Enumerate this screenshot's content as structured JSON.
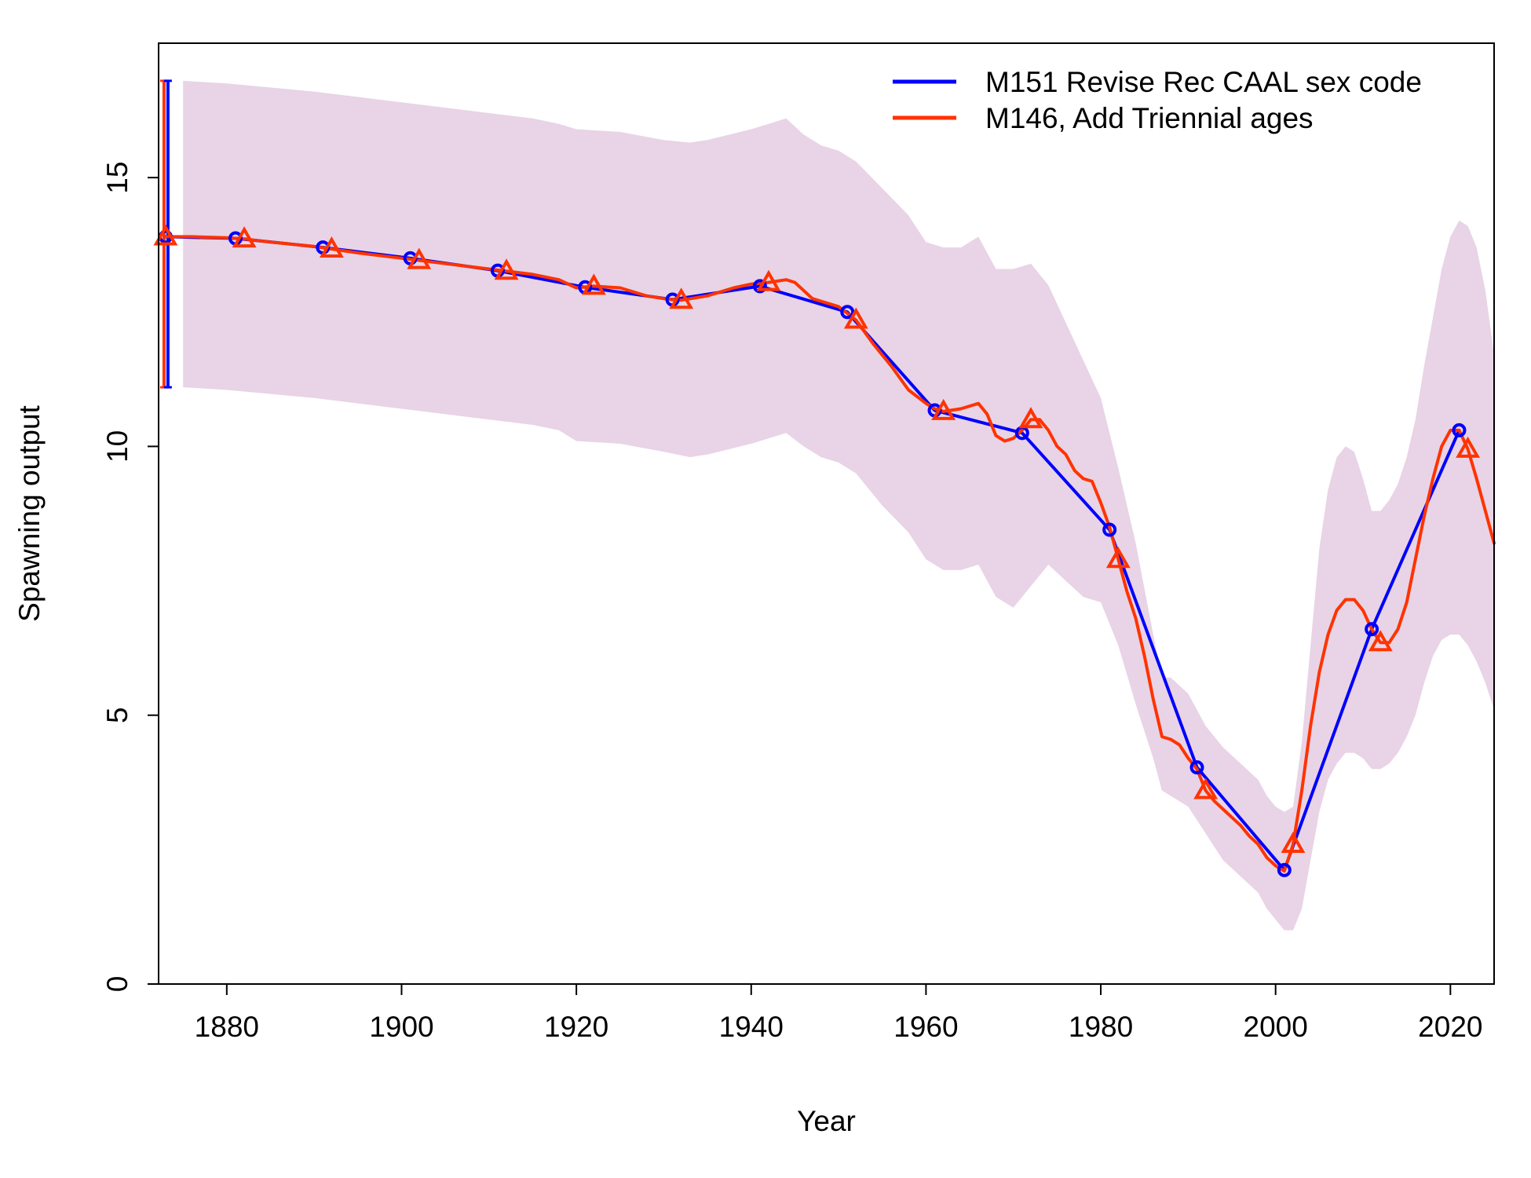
{
  "chart_data": {
    "type": "line",
    "title": "",
    "xlabel": "Year",
    "ylabel": "Spawning output",
    "xlim": [
      1872.2,
      2025
    ],
    "ylim": [
      0,
      17.5
    ],
    "x_ticks": [
      1880,
      1900,
      1920,
      1940,
      1960,
      1980,
      2000,
      2020
    ],
    "y_ticks": [
      0,
      5,
      10,
      15
    ],
    "legend_position": "top-right",
    "grid": false,
    "initial_year_interval": {
      "x": 1873,
      "lower": 11.1,
      "upper": 16.8
    },
    "band": {
      "color": "#e8d4e6",
      "x": [
        1875,
        1880,
        1890,
        1900,
        1910,
        1915,
        1918,
        1920,
        1925,
        1930,
        1933,
        1935,
        1940,
        1942,
        1944,
        1946,
        1948,
        1950,
        1952,
        1955,
        1958,
        1960,
        1962,
        1964,
        1966,
        1968,
        1970,
        1972,
        1974,
        1976,
        1978,
        1980,
        1982,
        1984,
        1986,
        1987,
        1988,
        1990,
        1992,
        1994,
        1996,
        1998,
        1999,
        2000,
        2001,
        2002,
        2003,
        2004,
        2005,
        2006,
        2007,
        2008,
        2009,
        2010,
        2011,
        2012,
        2013,
        2014,
        2015,
        2016,
        2017,
        2018,
        2019,
        2020,
        2021,
        2022,
        2023,
        2024,
        2025
      ],
      "upper": [
        16.8,
        16.75,
        16.6,
        16.4,
        16.2,
        16.1,
        16.0,
        15.9,
        15.85,
        15.7,
        15.65,
        15.7,
        15.9,
        16.0,
        16.1,
        15.8,
        15.6,
        15.5,
        15.3,
        14.8,
        14.3,
        13.8,
        13.7,
        13.7,
        13.9,
        13.3,
        13.3,
        13.4,
        13.0,
        12.3,
        11.6,
        10.9,
        9.6,
        8.2,
        6.5,
        5.7,
        5.7,
        5.4,
        4.8,
        4.4,
        4.1,
        3.8,
        3.5,
        3.3,
        3.2,
        3.3,
        4.5,
        6.3,
        8.1,
        9.2,
        9.8,
        10.0,
        9.9,
        9.4,
        8.8,
        8.8,
        9.0,
        9.3,
        9.8,
        10.5,
        11.5,
        12.4,
        13.3,
        13.9,
        14.2,
        14.1,
        13.7,
        12.9,
        11.7
      ],
      "lower": [
        11.1,
        11.05,
        10.9,
        10.7,
        10.5,
        10.4,
        10.3,
        10.1,
        10.05,
        9.9,
        9.8,
        9.85,
        10.05,
        10.15,
        10.25,
        10.0,
        9.8,
        9.7,
        9.5,
        8.9,
        8.4,
        7.9,
        7.7,
        7.7,
        7.8,
        7.2,
        7.0,
        7.4,
        7.8,
        7.5,
        7.2,
        7.1,
        6.3,
        5.2,
        4.2,
        3.6,
        3.5,
        3.3,
        2.8,
        2.3,
        2.0,
        1.7,
        1.4,
        1.2,
        1.0,
        1.0,
        1.4,
        2.3,
        3.2,
        3.8,
        4.1,
        4.3,
        4.3,
        4.2,
        4.0,
        4.0,
        4.1,
        4.3,
        4.6,
        5.0,
        5.6,
        6.1,
        6.4,
        6.5,
        6.5,
        6.3,
        6.0,
        5.6,
        5.1
      ]
    },
    "series": [
      {
        "name": "M151 Revise Rec CAAL sex code",
        "color": "#0000ff",
        "marker": "circle",
        "x": [
          1873,
          1881,
          1891,
          1901,
          1911,
          1921,
          1931,
          1941,
          1951,
          1961,
          1971,
          1981,
          1991,
          2001,
          2011,
          2021
        ],
        "values": [
          13.9,
          13.87,
          13.7,
          13.5,
          13.27,
          12.96,
          12.73,
          12.98,
          12.5,
          10.67,
          10.25,
          8.45,
          4.03,
          2.12,
          6.6,
          10.3
        ]
      },
      {
        "name": "M146, Add Triennial ages",
        "color": "#ff3300",
        "marker": "triangle",
        "x": [
          1873,
          1876,
          1880,
          1882,
          1885,
          1890,
          1895,
          1900,
          1905,
          1910,
          1915,
          1918,
          1920,
          1922,
          1925,
          1928,
          1930,
          1932,
          1935,
          1938,
          1940,
          1942,
          1944,
          1945,
          1947,
          1950,
          1952,
          1954,
          1956,
          1958,
          1960,
          1961,
          1962,
          1964,
          1966,
          1967,
          1968,
          1969,
          1970,
          1971,
          1972,
          1973,
          1974,
          1975,
          1976,
          1977,
          1978,
          1979,
          1980,
          1981,
          1982,
          1983,
          1984,
          1985,
          1986,
          1987,
          1988,
          1989,
          1990,
          1991,
          1992,
          1993,
          1994,
          1995,
          1996,
          1997,
          1998,
          1999,
          2000,
          2001,
          2002,
          2003,
          2004,
          2005,
          2006,
          2007,
          2008,
          2009,
          2010,
          2011,
          2012,
          2013,
          2014,
          2015,
          2016,
          2017,
          2018,
          2019,
          2020,
          2021,
          2022,
          2023,
          2024,
          2025
        ],
        "values": [
          13.9,
          13.9,
          13.88,
          13.86,
          13.8,
          13.72,
          13.6,
          13.5,
          13.4,
          13.3,
          13.2,
          13.1,
          12.95,
          12.98,
          12.95,
          12.8,
          12.75,
          12.72,
          12.8,
          12.95,
          13.02,
          13.05,
          13.1,
          13.05,
          12.75,
          12.6,
          12.35,
          11.9,
          11.5,
          11.05,
          10.8,
          10.7,
          10.65,
          10.7,
          10.8,
          10.6,
          10.2,
          10.1,
          10.15,
          10.3,
          10.5,
          10.5,
          10.3,
          10.0,
          9.85,
          9.55,
          9.4,
          9.35,
          8.95,
          8.5,
          7.9,
          7.3,
          6.8,
          6.1,
          5.3,
          4.6,
          4.55,
          4.45,
          4.2,
          4.0,
          3.6,
          3.4,
          3.25,
          3.1,
          2.95,
          2.75,
          2.6,
          2.35,
          2.2,
          2.1,
          2.6,
          3.6,
          4.8,
          5.8,
          6.5,
          6.95,
          7.15,
          7.15,
          6.95,
          6.6,
          6.35,
          6.35,
          6.6,
          7.1,
          7.9,
          8.7,
          9.4,
          10.0,
          10.3,
          10.3,
          9.95,
          9.4,
          8.8,
          8.2
        ]
      }
    ]
  }
}
